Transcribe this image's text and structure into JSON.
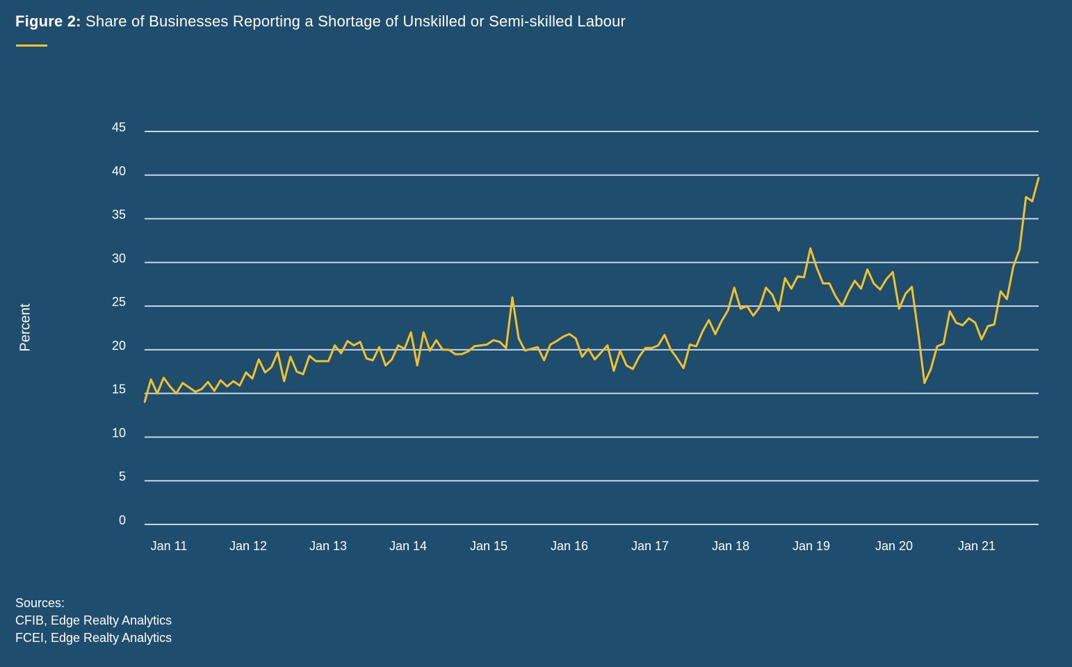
{
  "title": {
    "prefix": "Figure 2:",
    "text": " Share of Businesses Reporting a Shortage of Unskilled or Semi-skilled Labour"
  },
  "colors": {
    "background": "#1e4d6d",
    "line": "#f2c12e",
    "grid": "#c9d7e2",
    "accent_rule": "#f2c12e"
  },
  "chart_data": {
    "type": "line",
    "title": "Share of Businesses Reporting a Shortage of Unskilled or Semi-skilled Labour",
    "xlabel": "",
    "ylabel": "Percent",
    "ylim": [
      0,
      45
    ],
    "yticks": [
      0,
      5,
      10,
      15,
      20,
      25,
      30,
      35,
      40,
      45
    ],
    "xticks": [
      "Jan 11",
      "Jan 12",
      "Jan 13",
      "Jan 14",
      "Jan 15",
      "Jan 16",
      "Jan 17",
      "Jan 18",
      "Jan 19",
      "Jan 20",
      "Jan 21"
    ],
    "grid": "horizontal",
    "legend": "none",
    "series": [
      {
        "values": [
          14,
          16.6,
          15,
          16.8,
          15.8,
          15,
          16.2,
          15.7,
          15.2,
          15.5,
          16.3,
          15.3,
          16.5,
          15.8,
          16.4,
          15.9,
          17.4,
          16.7,
          18.9,
          17.4,
          18,
          19.7,
          16.4,
          19.2,
          17.5,
          17.2,
          19.3,
          18.7,
          18.7,
          18.7,
          20.5,
          19.6,
          21,
          20.5,
          20.9,
          19,
          18.8,
          20.3,
          18.2,
          18.9,
          20.5,
          20.1,
          22,
          18.2,
          22,
          19.9,
          21.1,
          20,
          20,
          19.5,
          19.5,
          19.8,
          20.4,
          20.5,
          20.6,
          21.1,
          20.9,
          20.2,
          26,
          21.3,
          19.9,
          20.1,
          20.3,
          18.8,
          20.6,
          21,
          21.5,
          21.8,
          21.3,
          19.2,
          20.1,
          18.9,
          19.7,
          20.5,
          17.6,
          19.9,
          18.2,
          17.8,
          19.2,
          20.2,
          20.2,
          20.5,
          21.7,
          20,
          19,
          17.9,
          20.6,
          20.4,
          22.1,
          23.4,
          21.8,
          23.3,
          24.5,
          27.1,
          24.7,
          25,
          23.9,
          24.9,
          27.1,
          26.3,
          24.5,
          28.2,
          27,
          28.4,
          28.3,
          31.6,
          29.4,
          27.6,
          27.6,
          26.1,
          25,
          26.6,
          27.9,
          27,
          29.2,
          27.6,
          26.9,
          28.1,
          28.9,
          24.7,
          26.4,
          27.2,
          22,
          16.2,
          17.8,
          20.4,
          20.7,
          24.4,
          23.1,
          22.8,
          23.6,
          23.1,
          21.2,
          22.7,
          22.9,
          26.7,
          25.8,
          29.5,
          31.5,
          37.5,
          37,
          39.7
        ]
      }
    ]
  },
  "sources": {
    "heading": "Sources:",
    "lines": [
      "CFIB, Edge Realty Analytics",
      "FCEI, Edge Realty Analytics"
    ]
  }
}
